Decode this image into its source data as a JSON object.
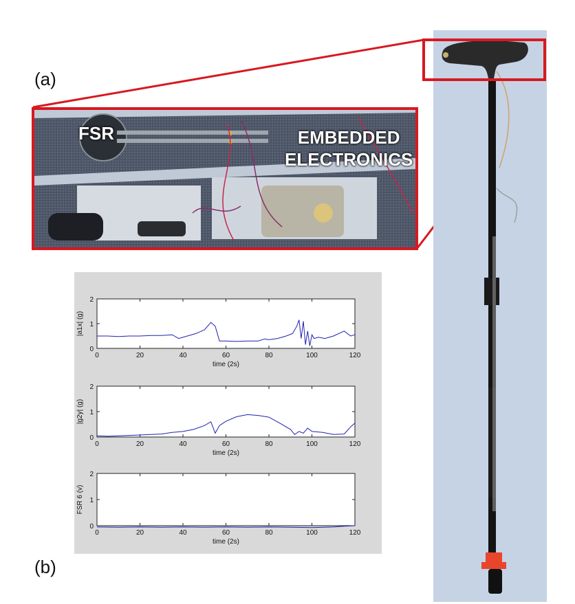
{
  "panel_labels": {
    "a": "(a)",
    "b": "(b)"
  },
  "inset": {
    "fsr": "FSR",
    "electronics_line1": "EMBEDDED",
    "electronics_line2": "ELECTRONICS"
  },
  "colors": {
    "highlight": "#d71920",
    "series": "#1f1fb0",
    "plot_bg": "#d9d9d9"
  },
  "chart_data": [
    {
      "type": "line",
      "ylabel": "|a1x| (g)",
      "xlabel": "time (2s)",
      "xlim": [
        0,
        120
      ],
      "ylim": [
        0,
        2
      ],
      "xticks": [
        0,
        20,
        40,
        60,
        80,
        100,
        120
      ],
      "yticks": [
        0,
        1,
        2
      ],
      "series": [
        {
          "x": [
            0,
            5,
            10,
            15,
            20,
            25,
            30,
            35,
            38,
            42,
            46,
            50,
            53,
            55,
            57,
            60,
            65,
            70,
            75,
            78,
            80,
            84,
            88,
            91,
            93,
            94,
            95,
            96,
            97,
            98,
            99,
            100,
            101,
            103,
            106,
            110,
            115,
            118,
            120
          ],
          "y": [
            0.5,
            0.5,
            0.48,
            0.5,
            0.5,
            0.52,
            0.52,
            0.55,
            0.4,
            0.5,
            0.6,
            0.75,
            1.05,
            0.9,
            0.3,
            0.3,
            0.28,
            0.3,
            0.3,
            0.38,
            0.35,
            0.4,
            0.5,
            0.6,
            0.9,
            1.15,
            0.4,
            1.1,
            0.15,
            0.7,
            0.1,
            0.55,
            0.4,
            0.45,
            0.4,
            0.5,
            0.7,
            0.5,
            0.55
          ]
        }
      ]
    },
    {
      "type": "line",
      "ylabel": "|g2y| (g)",
      "xlabel": "time (2s)",
      "xlim": [
        0,
        120
      ],
      "ylim": [
        0,
        2
      ],
      "xticks": [
        0,
        20,
        40,
        60,
        80,
        100,
        120
      ],
      "yticks": [
        0,
        1,
        2
      ],
      "series": [
        {
          "x": [
            0,
            5,
            10,
            20,
            30,
            35,
            40,
            45,
            50,
            53,
            55,
            57,
            60,
            65,
            70,
            75,
            80,
            85,
            90,
            92,
            94,
            96,
            98,
            100,
            105,
            110,
            115,
            118,
            120
          ],
          "y": [
            0.05,
            0.03,
            0.05,
            0.08,
            0.12,
            0.18,
            0.22,
            0.3,
            0.45,
            0.6,
            0.15,
            0.45,
            0.62,
            0.8,
            0.88,
            0.85,
            0.78,
            0.55,
            0.3,
            0.1,
            0.22,
            0.15,
            0.35,
            0.22,
            0.18,
            0.1,
            0.12,
            0.4,
            0.55
          ]
        }
      ]
    },
    {
      "type": "line",
      "ylabel": "FSR 6 (v)",
      "xlabel": "time (2s)",
      "xlim": [
        0,
        120
      ],
      "ylim": [
        0,
        2
      ],
      "xticks": [
        0,
        20,
        40,
        60,
        80,
        100,
        120
      ],
      "yticks": [
        0,
        1,
        2
      ],
      "series": [
        {
          "x": [
            0,
            10,
            20,
            30,
            40,
            50,
            60,
            70,
            80,
            90,
            100,
            110,
            115,
            120
          ],
          "y": [
            -0.05,
            -0.06,
            -0.05,
            -0.06,
            -0.05,
            -0.06,
            -0.05,
            -0.06,
            -0.05,
            -0.06,
            -0.07,
            -0.05,
            -0.02,
            0.0
          ]
        }
      ]
    }
  ]
}
